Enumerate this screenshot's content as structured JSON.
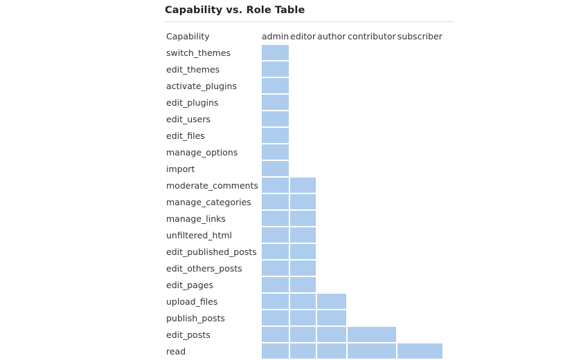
{
  "page": {
    "title": "Capability vs. Role Table"
  },
  "colors": {
    "granted_cell": "#aecdee",
    "divider": "#dddddd"
  },
  "table": {
    "capability_header": "Capability",
    "roles": [
      "admin",
      "editor",
      "author",
      "contributor",
      "subscriber"
    ],
    "rows": [
      {
        "capability": "switch_themes",
        "granted": [
          true,
          false,
          false,
          false,
          false
        ]
      },
      {
        "capability": "edit_themes",
        "granted": [
          true,
          false,
          false,
          false,
          false
        ]
      },
      {
        "capability": "activate_plugins",
        "granted": [
          true,
          false,
          false,
          false,
          false
        ]
      },
      {
        "capability": "edit_plugins",
        "granted": [
          true,
          false,
          false,
          false,
          false
        ]
      },
      {
        "capability": "edit_users",
        "granted": [
          true,
          false,
          false,
          false,
          false
        ]
      },
      {
        "capability": "edit_files",
        "granted": [
          true,
          false,
          false,
          false,
          false
        ]
      },
      {
        "capability": "manage_options",
        "granted": [
          true,
          false,
          false,
          false,
          false
        ]
      },
      {
        "capability": "import",
        "granted": [
          true,
          false,
          false,
          false,
          false
        ]
      },
      {
        "capability": "moderate_comments",
        "granted": [
          true,
          true,
          false,
          false,
          false
        ]
      },
      {
        "capability": "manage_categories",
        "granted": [
          true,
          true,
          false,
          false,
          false
        ]
      },
      {
        "capability": "manage_links",
        "granted": [
          true,
          true,
          false,
          false,
          false
        ]
      },
      {
        "capability": "unfiltered_html",
        "granted": [
          true,
          true,
          false,
          false,
          false
        ]
      },
      {
        "capability": "edit_published_posts",
        "granted": [
          true,
          true,
          false,
          false,
          false
        ]
      },
      {
        "capability": "edit_others_posts",
        "granted": [
          true,
          true,
          false,
          false,
          false
        ]
      },
      {
        "capability": "edit_pages",
        "granted": [
          true,
          true,
          false,
          false,
          false
        ]
      },
      {
        "capability": "upload_files",
        "granted": [
          true,
          true,
          true,
          false,
          false
        ]
      },
      {
        "capability": "publish_posts",
        "granted": [
          true,
          true,
          true,
          false,
          false
        ]
      },
      {
        "capability": "edit_posts",
        "granted": [
          true,
          true,
          true,
          true,
          false
        ]
      },
      {
        "capability": "read",
        "granted": [
          true,
          true,
          true,
          true,
          true
        ]
      }
    ]
  }
}
